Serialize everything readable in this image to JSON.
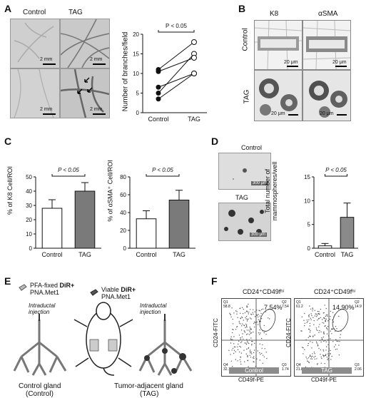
{
  "panels": {
    "A": {
      "letter": "A",
      "col_control": "Control",
      "col_tag": "TAG",
      "scale_bars": [
        "2 mm",
        "2 mm",
        "2 mm",
        "2 mm"
      ],
      "chart_title_p": "P < 0.05",
      "ylabel": "Number of branches/field"
    },
    "B": {
      "letter": "B",
      "col_k8": "K8",
      "col_asma": "αSMA",
      "row_control": "Control",
      "row_tag": "TAG",
      "scale_bars": [
        "20 μm",
        "20 μm",
        "20 μm",
        "20 μm"
      ]
    },
    "C": {
      "letter": "C",
      "p1": "P < 0.05",
      "p2": "P < 0.05",
      "ylabel1": "% of K8 Cell/ROI",
      "ylabel2": "% of αSMA⁺ Cell/ROI"
    },
    "D": {
      "letter": "D",
      "img_control": "Control",
      "img_tag": "TAG",
      "scale1": "300 μm",
      "scale2": "300 μm",
      "p": "P < 0.05",
      "ylabel": "Total number of mammospheres/well"
    },
    "E": {
      "letter": "E",
      "pfa": "PFA-fixed ",
      "pfa_bold": "DiR+",
      "pfa_line2": "PNA.Met1",
      "viable": "Viable ",
      "viable_bold": "DiR+",
      "viable_line2": "PNA.Met1",
      "inj_left": "Intraductal injection",
      "inj_right": "Intraductal injection",
      "cap_left1": "Control gland",
      "cap_left2": "(Control)",
      "cap_right1": "Tumor-adjacent gland",
      "cap_right2": "(TAG)"
    },
    "F": {
      "letter": "F",
      "gate1_title": "CD24⁺CD49fʰⁱ",
      "gate2_title": "CD24⁺CD49fʰⁱ",
      "pct1": "7.54%",
      "pct2": "14.90%",
      "ylabel": "CD24-FITC",
      "xlabel": "CD49f-PE",
      "box1": "Control",
      "box2": "TAG",
      "q1_ctrl": [
        "Q1",
        "58.8"
      ],
      "q2_ctrl": [
        "Q2",
        "7.54"
      ],
      "q3_ctrl": [
        "Q3",
        "1.74"
      ],
      "q4_ctrl": [
        "Q4",
        "32.1"
      ],
      "q1_tag": [
        "Q1",
        "61.2"
      ],
      "q2_tag": [
        "Q2",
        "14.9"
      ],
      "q3_tag": [
        "Q3",
        "2.06"
      ],
      "q4_tag": [
        "Q4",
        "21.8"
      ]
    }
  },
  "chart_data": [
    {
      "id": "A-branches",
      "type": "scatter",
      "categories": [
        "Control",
        "TAG"
      ],
      "pairs": [
        [
          3.5,
          10
        ],
        [
          5,
          15
        ],
        [
          6.5,
          10
        ],
        [
          10.5,
          14
        ],
        [
          11,
          18
        ]
      ],
      "ylim": [
        0,
        20
      ],
      "yticks": [
        0,
        5,
        10,
        15,
        20
      ],
      "title": "P < 0.05",
      "ylabel": "Number of branches/field"
    },
    {
      "id": "C-K8",
      "type": "bar",
      "categories": [
        "Control",
        "TAG"
      ],
      "values": [
        28,
        40
      ],
      "errors": [
        6,
        6
      ],
      "colors": [
        "#ffffff",
        "#7a7a7a"
      ],
      "ylim": [
        0,
        50
      ],
      "yticks": [
        0,
        10,
        20,
        30,
        40,
        50
      ],
      "ylabel": "% of K8 Cell/ROI"
    },
    {
      "id": "C-aSMA",
      "type": "bar",
      "categories": [
        "Control",
        "TAG"
      ],
      "values": [
        33,
        54
      ],
      "errors": [
        9,
        11
      ],
      "colors": [
        "#ffffff",
        "#7a7a7a"
      ],
      "ylim": [
        0,
        80
      ],
      "yticks": [
        0,
        20,
        40,
        60,
        80
      ],
      "ylabel": "% of αSMA⁺ Cell/ROI"
    },
    {
      "id": "D-mammospheres",
      "type": "bar",
      "categories": [
        "Control",
        "TAG"
      ],
      "values": [
        0.5,
        6.5
      ],
      "errors": [
        0.5,
        3
      ],
      "colors": [
        "#ffffff",
        "#8a8a8a"
      ],
      "ylim": [
        0,
        15
      ],
      "yticks": [
        0,
        5,
        10,
        15
      ],
      "ylabel": "Total number of mammospheres/well"
    }
  ]
}
